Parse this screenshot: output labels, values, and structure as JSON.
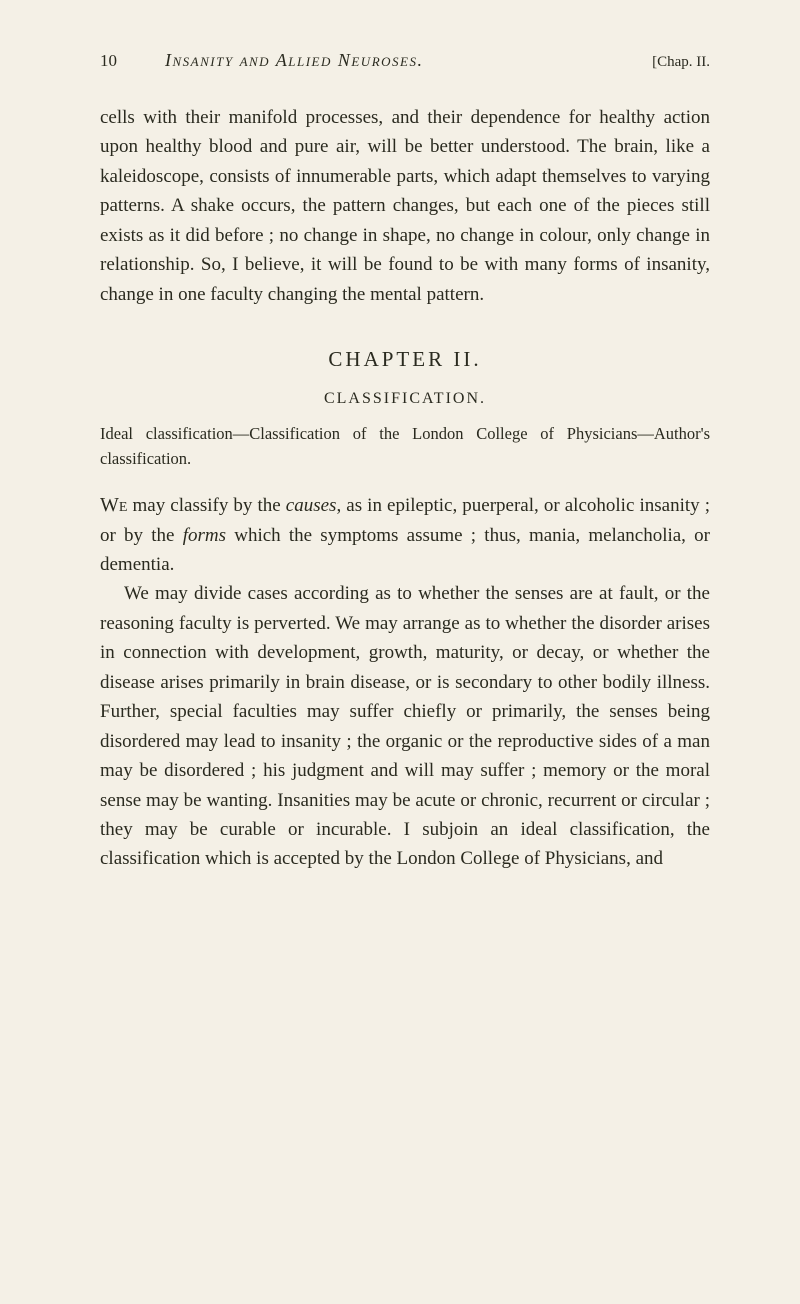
{
  "header": {
    "page_number": "10",
    "title": "Insanity and Allied Neuroses.",
    "chapter_ref": "[Chap. II."
  },
  "opening_paragraph": "cells with their manifold processes, and their dependence for healthy action upon healthy blood and pure air, will be better understood. The brain, like a kaleidoscope, consists of innumerable parts, which adapt themselves to varying patterns. A shake occurs, the pattern changes, but each one of the pieces still exists as it did before ; no change in shape, no change in colour, only change in relationship. So, I believe, it will be found to be with many forms of insanity, change in one faculty changing the mental pattern.",
  "chapter": {
    "heading": "CHAPTER II.",
    "subtitle": "CLASSIFICATION."
  },
  "ideal_text": "Ideal classification—Classification of the London College of Physicians—Author's classification.",
  "main": {
    "we_word": "We",
    "p1_part1": " may classify by the ",
    "p1_italic1": "causes",
    "p1_part2": ", as in epileptic, puerperal, or alcoholic insanity ; or by the ",
    "p1_italic2": "forms",
    "p1_part3": " which the symptoms assume ; thus, mania, melancholia, or dementia.",
    "p2": "We may divide cases according as to whether the senses are at fault, or the reasoning faculty is perverted. We may arrange as to whether the disorder arises in connection with development, growth, maturity, or decay, or whether the disease arises primarily in brain disease, or is secondary to other bodily illness. Further, special faculties may suffer chiefly or primarily, the senses being disordered may lead to insanity ; the organic or the reproductive sides of a man may be disordered ; his judgment and will may suffer ; memory or the moral sense may be wanting. Insanities may be acute or chronic, recurrent or circular ; they may be curable or incurable. I subjoin an ideal classification, the classification which is accepted by the London College of Physicians, and"
  },
  "colors": {
    "background": "#f4f0e6",
    "text": "#2a2a1f"
  },
  "typography": {
    "body_font_size": 19,
    "header_font_size": 18,
    "chapter_heading_size": 21,
    "subtitle_size": 16,
    "ideal_size": 16.5,
    "line_height": 1.55,
    "font_family": "Georgia, Times New Roman, serif"
  }
}
